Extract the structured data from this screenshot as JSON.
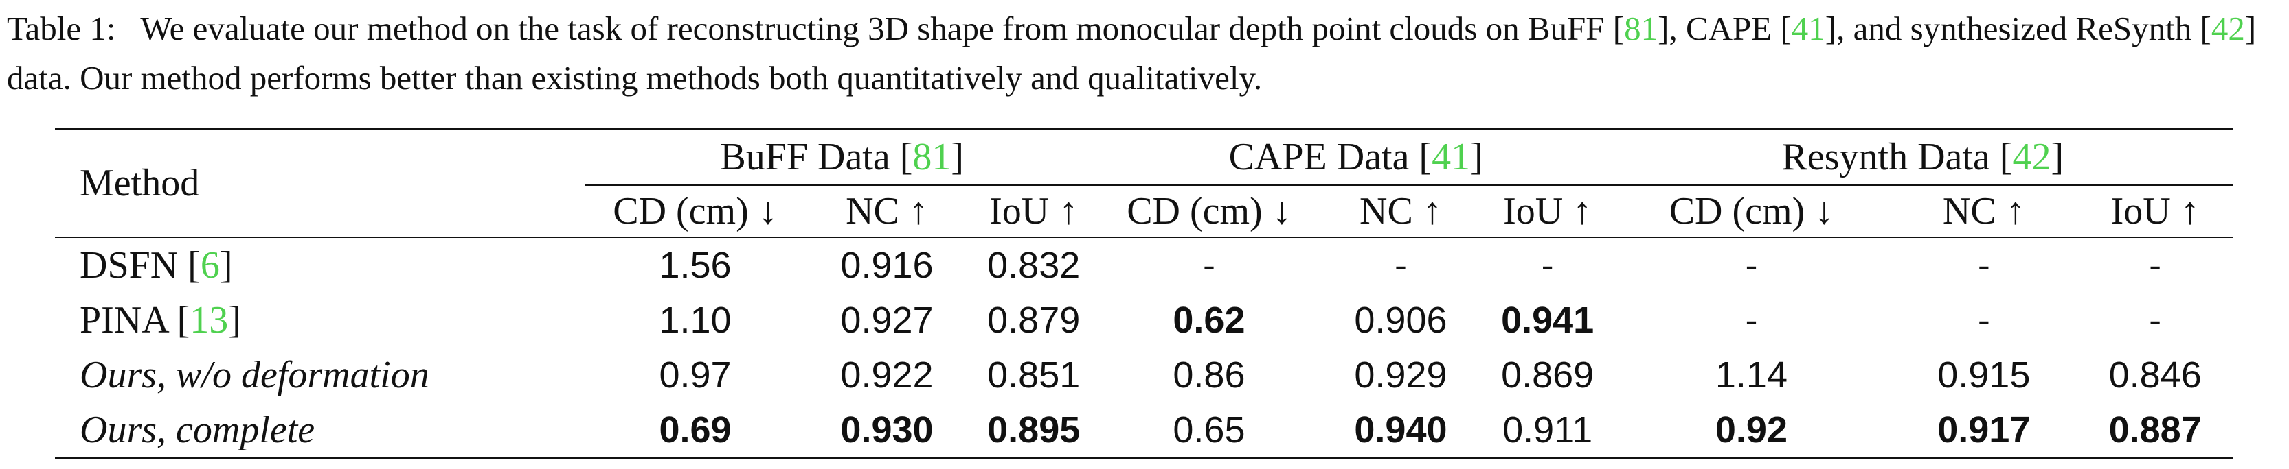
{
  "caption": {
    "label": "Table 1:",
    "seg1": "We evaluate our method on the task of reconstructing 3D shape from monocular depth point clouds on BuFF [",
    "cite1": "81",
    "seg2": "], CAPE [",
    "cite2": "41",
    "seg3": "], and synthesized ReSynth [",
    "cite3": "42",
    "seg4": "] data. Our method performs better than existing methods both quantitatively and qualitatively."
  },
  "table": {
    "method_header": "Method",
    "groups": [
      {
        "name": "BuFF Data [",
        "cite": "81",
        "close": "]"
      },
      {
        "name": "CAPE Data [",
        "cite": "41",
        "close": "]"
      },
      {
        "name": "Resynth Data [",
        "cite": "42",
        "close": "]"
      }
    ],
    "metrics": [
      "CD (cm) ↓",
      "NC ↑",
      "IoU ↑",
      "CD (cm) ↓",
      "NC ↑",
      "IoU ↑",
      "CD (cm) ↓",
      "NC ↑",
      "IoU ↑"
    ],
    "rows": [
      {
        "method": "DSFN [",
        "cite": "6",
        "close": "]",
        "italic": false,
        "values": [
          "1.56",
          "0.916",
          "0.832",
          "-",
          "-",
          "-",
          "-",
          "-",
          "-"
        ],
        "bold": [
          false,
          false,
          false,
          false,
          false,
          false,
          false,
          false,
          false
        ]
      },
      {
        "method": "PINA [",
        "cite": "13",
        "close": "]",
        "italic": false,
        "values": [
          "1.10",
          "0.927",
          "0.879",
          "0.62",
          "0.906",
          "0.941",
          "-",
          "-",
          "-"
        ],
        "bold": [
          false,
          false,
          false,
          true,
          false,
          true,
          false,
          false,
          false
        ]
      },
      {
        "method": "Ours, w/o deformation",
        "cite": "",
        "close": "",
        "italic": true,
        "values": [
          "0.97",
          "0.922",
          "0.851",
          "0.86",
          "0.929",
          "0.869",
          "1.14",
          "0.915",
          "0.846"
        ],
        "bold": [
          false,
          false,
          false,
          false,
          false,
          false,
          false,
          false,
          false
        ]
      },
      {
        "method": "Ours, complete",
        "cite": "",
        "close": "",
        "italic": true,
        "values": [
          "0.69",
          "0.930",
          "0.895",
          "0.65",
          "0.940",
          "0.911",
          "0.92",
          "0.917",
          "0.887"
        ],
        "bold": [
          true,
          true,
          true,
          false,
          true,
          false,
          true,
          true,
          true
        ]
      }
    ]
  }
}
